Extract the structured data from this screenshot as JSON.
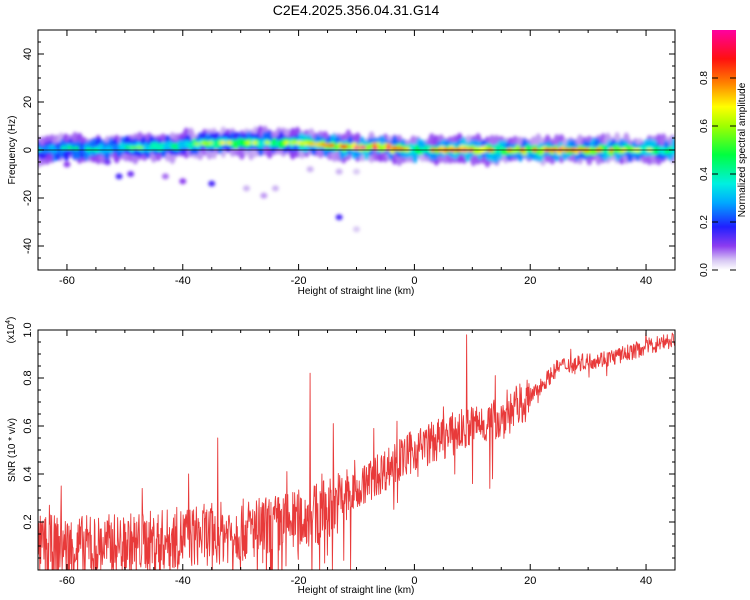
{
  "title": "C2E4.2025.356.04.31.G14",
  "chart_data": [
    {
      "type": "heatmap",
      "name": "spectrogram",
      "xlabel": "Height of straight line (km)",
      "ylabel": "Frequency (Hz)",
      "xlim": [
        -65,
        45
      ],
      "ylim": [
        -50,
        50
      ],
      "xticks": [
        -60,
        -40,
        -20,
        0,
        20,
        40
      ],
      "yticks": [
        -40,
        -20,
        0,
        20,
        40
      ],
      "colorbar": {
        "label": "Normalized spectral amplitude",
        "range": [
          0.0,
          1.0
        ],
        "ticks": [
          0.0,
          0.2,
          0.4,
          0.6,
          0.8
        ],
        "tick_labels": [
          "0.0",
          "0.2",
          "0.4",
          "0.6",
          "0.8"
        ]
      },
      "ridge": {
        "x": [
          -65,
          -60,
          -55,
          -50,
          -45,
          -40,
          -35,
          -30,
          -25,
          -20,
          -15,
          -10,
          -5,
          0,
          5,
          10,
          15,
          20,
          25,
          30,
          35,
          40,
          45
        ],
        "freq": [
          0,
          1,
          0,
          1,
          1,
          2,
          3,
          3,
          3,
          3,
          2,
          1,
          1,
          0,
          0,
          0,
          0,
          0,
          0,
          0,
          0,
          0,
          0
        ],
        "amplitude": [
          0.35,
          0.4,
          0.4,
          0.45,
          0.5,
          0.55,
          0.6,
          0.6,
          0.6,
          0.6,
          0.7,
          0.9,
          0.95,
          0.6,
          0.8,
          0.9,
          0.7,
          0.75,
          0.9,
          0.7,
          0.7,
          0.65,
          0.6
        ]
      },
      "scatter_blobs": [
        {
          "x": -53,
          "y": -5,
          "v": 0.12
        },
        {
          "x": -51,
          "y": -11,
          "v": 0.15
        },
        {
          "x": -49,
          "y": -10,
          "v": 0.12
        },
        {
          "x": -43,
          "y": -11,
          "v": 0.08
        },
        {
          "x": -40,
          "y": -13,
          "v": 0.1
        },
        {
          "x": -35,
          "y": -14,
          "v": 0.15
        },
        {
          "x": -29,
          "y": -16,
          "v": 0.05
        },
        {
          "x": -24,
          "y": -16,
          "v": 0.05
        },
        {
          "x": -26,
          "y": -19,
          "v": 0.06
        },
        {
          "x": -13,
          "y": -28,
          "v": 0.15
        },
        {
          "x": -10,
          "y": -33,
          "v": 0.04
        },
        {
          "x": -18,
          "y": -8,
          "v": 0.05
        },
        {
          "x": -13,
          "y": -9,
          "v": 0.05
        },
        {
          "x": -10,
          "y": -9,
          "v": 0.04
        },
        {
          "x": -60,
          "y": -6,
          "v": 0.1
        },
        {
          "x": -63,
          "y": -3,
          "v": 0.1
        }
      ]
    },
    {
      "type": "line",
      "name": "snr",
      "xlabel": "Height of straight line (km)",
      "ylabel": "SNR (10 * v/v)",
      "scale_label": "(x10",
      "scale_exponent": "4",
      "xlim": [
        -65,
        45
      ],
      "ylim": [
        0,
        1.0
      ],
      "xticks": [
        -60,
        -40,
        -20,
        0,
        20,
        40
      ],
      "yticks": [
        0.2,
        0.4,
        0.6,
        0.8,
        1.0
      ],
      "ytick_labels": [
        "0.2",
        "0.4",
        "0.6",
        "0.8",
        "1.0"
      ],
      "color": "#e83a3a",
      "trend": {
        "x": [
          -65,
          -55,
          -45,
          -35,
          -25,
          -18,
          -12,
          -5,
          0,
          5,
          10,
          15,
          20,
          25,
          30,
          35,
          40,
          45
        ],
        "y": [
          0.1,
          0.1,
          0.12,
          0.15,
          0.18,
          0.22,
          0.3,
          0.42,
          0.5,
          0.55,
          0.6,
          0.63,
          0.72,
          0.85,
          0.87,
          0.89,
          0.93,
          0.96
        ]
      },
      "spikes": [
        {
          "x": -63,
          "y": 0.27
        },
        {
          "x": -61,
          "y": 0.35
        },
        {
          "x": -56,
          "y": 0.22
        },
        {
          "x": -47,
          "y": 0.34
        },
        {
          "x": -39,
          "y": 0.4
        },
        {
          "x": -34,
          "y": 0.55
        },
        {
          "x": -30,
          "y": 0.38
        },
        {
          "x": -22,
          "y": 0.41
        },
        {
          "x": -18,
          "y": 0.82
        },
        {
          "x": -16,
          "y": 0.4
        },
        {
          "x": -14,
          "y": 0.61
        },
        {
          "x": -11,
          "y": 0.7
        },
        {
          "x": -7,
          "y": 0.59
        },
        {
          "x": -3,
          "y": 0.62
        },
        {
          "x": 2,
          "y": 0.55
        },
        {
          "x": 5,
          "y": 0.68
        },
        {
          "x": 7,
          "y": 0.79
        },
        {
          "x": 9,
          "y": 0.98
        },
        {
          "x": 11,
          "y": 0.6
        },
        {
          "x": 14,
          "y": 0.81
        },
        {
          "x": 16,
          "y": 0.75
        },
        {
          "x": 27,
          "y": 0.92
        },
        {
          "x": 40,
          "y": 0.99
        },
        {
          "x": 43,
          "y": 0.98
        }
      ],
      "dips": [
        {
          "x": -55,
          "y": 0.0
        },
        {
          "x": -44,
          "y": 0.0
        },
        {
          "x": -30,
          "y": 0.0
        },
        {
          "x": -11,
          "y": 0.0
        },
        {
          "x": 7,
          "y": 0.4
        },
        {
          "x": 10,
          "y": 0.36
        },
        {
          "x": 13,
          "y": 0.34
        },
        {
          "x": 13.5,
          "y": 0.38
        }
      ]
    }
  ]
}
